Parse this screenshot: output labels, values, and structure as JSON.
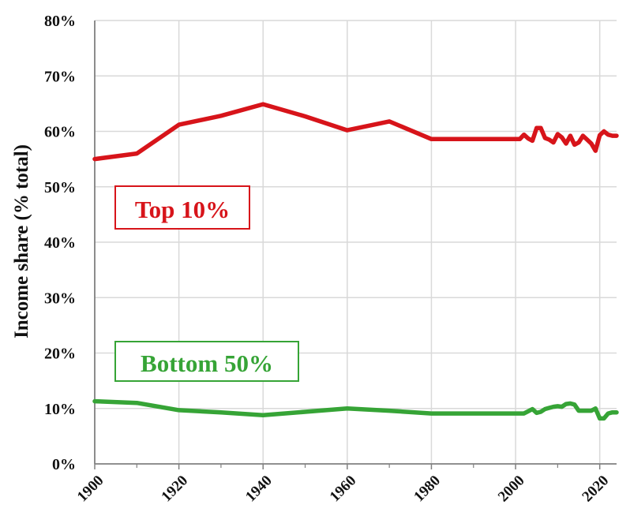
{
  "chart_data": {
    "type": "line",
    "title": "",
    "xlabel": "",
    "ylabel": "Income share (% total)",
    "xlim": [
      1900,
      2024
    ],
    "ylim": [
      0,
      80
    ],
    "grid": true,
    "x_ticks": [
      "1900",
      "1920",
      "1940",
      "1960",
      "1980",
      "2000",
      "2020"
    ],
    "y_ticks": [
      "0%",
      "10%",
      "20%",
      "30%",
      "40%",
      "50%",
      "60%",
      "70%",
      "80%"
    ],
    "colors": {
      "top": "#d7141a",
      "bottom": "#36a436",
      "grid": "#d9d9d9",
      "axis": "#808080"
    },
    "series": [
      {
        "name": "Top 10%",
        "x": [
          1900,
          1910,
          1920,
          1930,
          1940,
          1950,
          1960,
          1970,
          1980,
          1990,
          2000,
          2001,
          2002,
          2003,
          2004,
          2005,
          2006,
          2007,
          2008,
          2009,
          2010,
          2011,
          2012,
          2013,
          2014,
          2015,
          2016,
          2017,
          2018,
          2019,
          2020,
          2021,
          2022,
          2023,
          2024
        ],
        "values": [
          55.0,
          56.0,
          61.2,
          62.8,
          64.9,
          62.7,
          60.2,
          61.8,
          58.6,
          58.6,
          58.6,
          58.6,
          59.4,
          58.7,
          58.3,
          60.6,
          60.6,
          58.8,
          58.5,
          58.0,
          59.5,
          58.9,
          57.8,
          59.2,
          57.6,
          58.0,
          59.2,
          58.5,
          57.8,
          56.5,
          59.3,
          60.0,
          59.4,
          59.2,
          59.2
        ]
      },
      {
        "name": "Bottom 50%",
        "x": [
          1900,
          1910,
          1920,
          1930,
          1940,
          1950,
          1960,
          1970,
          1980,
          1990,
          2000,
          2001,
          2002,
          2003,
          2004,
          2005,
          2006,
          2007,
          2008,
          2009,
          2010,
          2011,
          2012,
          2013,
          2014,
          2015,
          2016,
          2017,
          2018,
          2019,
          2020,
          2021,
          2022,
          2023,
          2024
        ],
        "values": [
          11.3,
          11.0,
          9.7,
          9.3,
          8.8,
          9.4,
          10.0,
          9.6,
          9.1,
          9.1,
          9.1,
          9.1,
          9.1,
          9.5,
          9.9,
          9.2,
          9.4,
          9.9,
          10.1,
          10.3,
          10.4,
          10.3,
          10.8,
          10.9,
          10.7,
          9.6,
          9.6,
          9.6,
          9.6,
          10.0,
          8.2,
          8.2,
          9.1,
          9.3,
          9.3
        ]
      }
    ]
  }
}
